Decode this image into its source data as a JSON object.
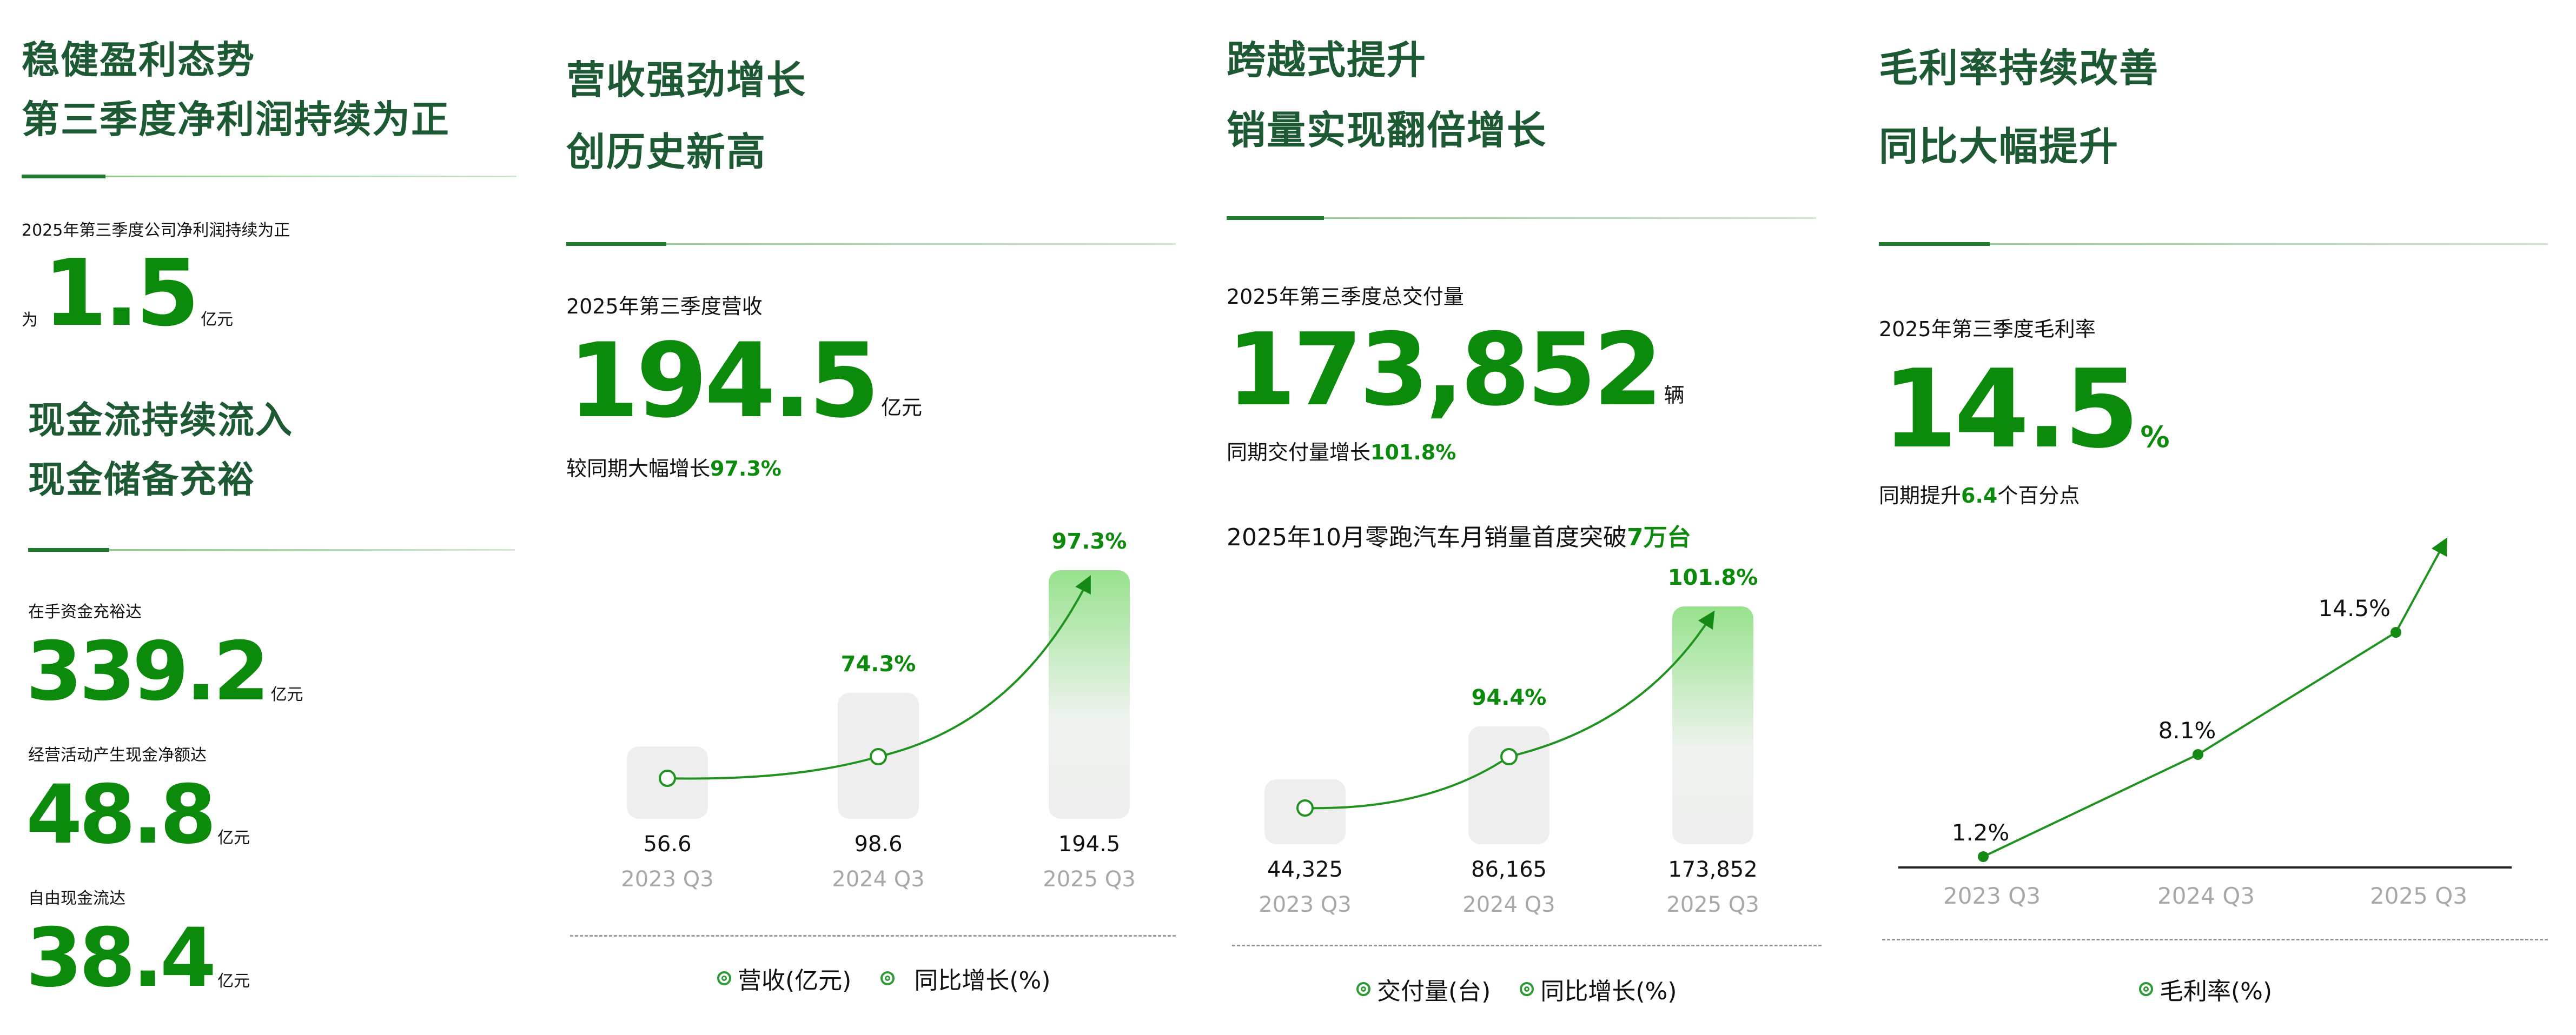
{
  "colors": {
    "heading": "#1d5a34",
    "accent": "#0b8a0b",
    "line": "#2a9a2a",
    "bar_gray": "#eeeeee",
    "bar_green_top": "#97e28d",
    "category_gray": "#a8a8a8"
  },
  "panel1": {
    "section1": {
      "title_line1": "稳健盈利态势",
      "title_line2": "第三季度净利润持续为正",
      "label": "2025年第三季度公司净利润持续为正",
      "prefix": "为",
      "value": "1.5",
      "unit": "亿元"
    },
    "section2": {
      "title_line1": "现金流持续流入",
      "title_line2": "现金储备充裕",
      "metrics": [
        {
          "label": "在手资金充裕达",
          "value": "339.2",
          "unit": "亿元"
        },
        {
          "label": "经营活动产生现金净额达",
          "value": "48.8",
          "unit": "亿元"
        },
        {
          "label": "自由现金流达",
          "value": "38.4",
          "unit": "亿元"
        }
      ]
    }
  },
  "panel2": {
    "title_line1": "营收强劲增长",
    "title_line2": "创历史新高",
    "label": "2025年第三季度营收",
    "value": "194.5",
    "unit": "亿元",
    "growth_prefix": "较同期大幅增长",
    "growth_value": "97.3%",
    "legend": [
      "营收(亿元)",
      "同比增长(%)"
    ]
  },
  "panel3": {
    "title_line1": "跨越式提升",
    "title_line2": "销量实现翻倍增长",
    "label": "2025年第三季度总交付量",
    "value": "173,852",
    "unit": "辆",
    "growth_prefix": "同期交付量增长",
    "growth_value": "101.8%",
    "note_prefix": "2025年10月零跑汽车月销量首度突破",
    "note_value": "7万台",
    "legend": [
      "交付量(台)",
      "同比增长(%)"
    ]
  },
  "panel4": {
    "title_line1": "毛利率持续改善",
    "title_line2": "同比大幅提升",
    "label": "2025年第三季度毛利率",
    "value": "14.5",
    "unit": "%",
    "growth_prefix": "同期提升",
    "growth_value": "6.4",
    "growth_suffix": "个百分点",
    "legend": [
      "毛利率(%)"
    ]
  },
  "chart_data": [
    {
      "type": "bar",
      "title": "营收强劲增长",
      "categories": [
        "2023 Q3",
        "2024 Q3",
        "2025 Q3"
      ],
      "series": [
        {
          "name": "营收(亿元)",
          "values": [
            56.6,
            98.6,
            194.5
          ],
          "labels": [
            "56.6",
            "98.6",
            "194.5"
          ]
        },
        {
          "name": "同比增长(%)",
          "values": [
            null,
            74.3,
            97.3
          ],
          "labels": [
            "",
            "74.3%",
            "97.3%"
          ],
          "type": "line"
        }
      ],
      "xlabel": "",
      "ylabel": "",
      "grid": false,
      "legend_position": "bottom"
    },
    {
      "type": "bar",
      "title": "跨越式提升 销量实现翻倍增长",
      "categories": [
        "2023 Q3",
        "2024 Q3",
        "2025 Q3"
      ],
      "series": [
        {
          "name": "交付量(台)",
          "values": [
            44325,
            86165,
            173852
          ],
          "labels": [
            "44,325",
            "86,165",
            "173,852"
          ]
        },
        {
          "name": "同比增长(%)",
          "values": [
            null,
            94.4,
            101.8
          ],
          "labels": [
            "",
            "94.4%",
            "101.8%"
          ],
          "type": "line"
        }
      ],
      "xlabel": "",
      "ylabel": "",
      "grid": false,
      "legend_position": "bottom"
    },
    {
      "type": "line",
      "title": "毛利率持续改善",
      "categories": [
        "2023 Q3",
        "2024 Q3",
        "2025 Q3"
      ],
      "series": [
        {
          "name": "毛利率(%)",
          "values": [
            1.2,
            8.1,
            14.5
          ],
          "labels": [
            "1.2%",
            "8.1%",
            "14.5%"
          ]
        }
      ],
      "xlabel": "",
      "ylabel": "",
      "grid": false,
      "legend_position": "bottom"
    }
  ]
}
